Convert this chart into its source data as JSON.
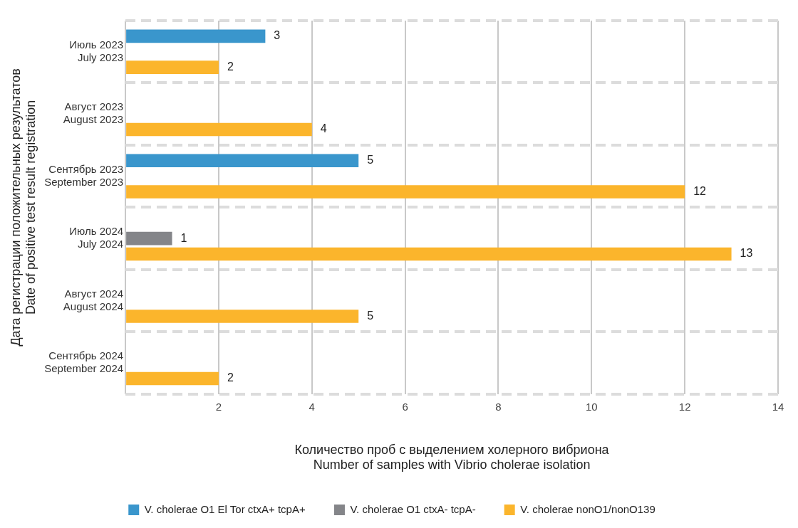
{
  "chart_data": {
    "type": "bar",
    "orientation": "horizontal",
    "categories": [
      "Июль 2023\nJuly 2023",
      "Август 2023\nAugust 2023",
      "Сентябрь 2023\nSeptember 2023",
      "Июль 2024\nJuly 2024",
      "Август 2024\nAugust 2024",
      "Сентябрь 2024\nSeptember 2024"
    ],
    "series": [
      {
        "name": "V. cholerae O1 El Tor ctxA+ tcpA+",
        "color": "#3a96cc",
        "values": [
          3,
          null,
          5,
          null,
          null,
          null
        ]
      },
      {
        "name": "V. cholerae O1 ctxA- tcpA-",
        "color": "#848589",
        "values": [
          null,
          null,
          null,
          1,
          null,
          null
        ]
      },
      {
        "name": "V. cholerae nonO1/nonO139",
        "color": "#fbb52c",
        "values": [
          2,
          4,
          12,
          13,
          5,
          2
        ]
      }
    ],
    "xlim": [
      0,
      14
    ],
    "xticks": [
      {
        "value": 0,
        "label": null
      },
      2,
      4,
      6,
      8,
      10,
      12,
      14
    ],
    "xlabel": "Количество проб с выделением холерного вибриона\nNumber of samples with Vibrio cholerae isolation",
    "ylabel": "Дата регистрации положительных результатов\nDate of positive test result registration",
    "grid": true,
    "legend": "bottom",
    "data_labels": true
  }
}
